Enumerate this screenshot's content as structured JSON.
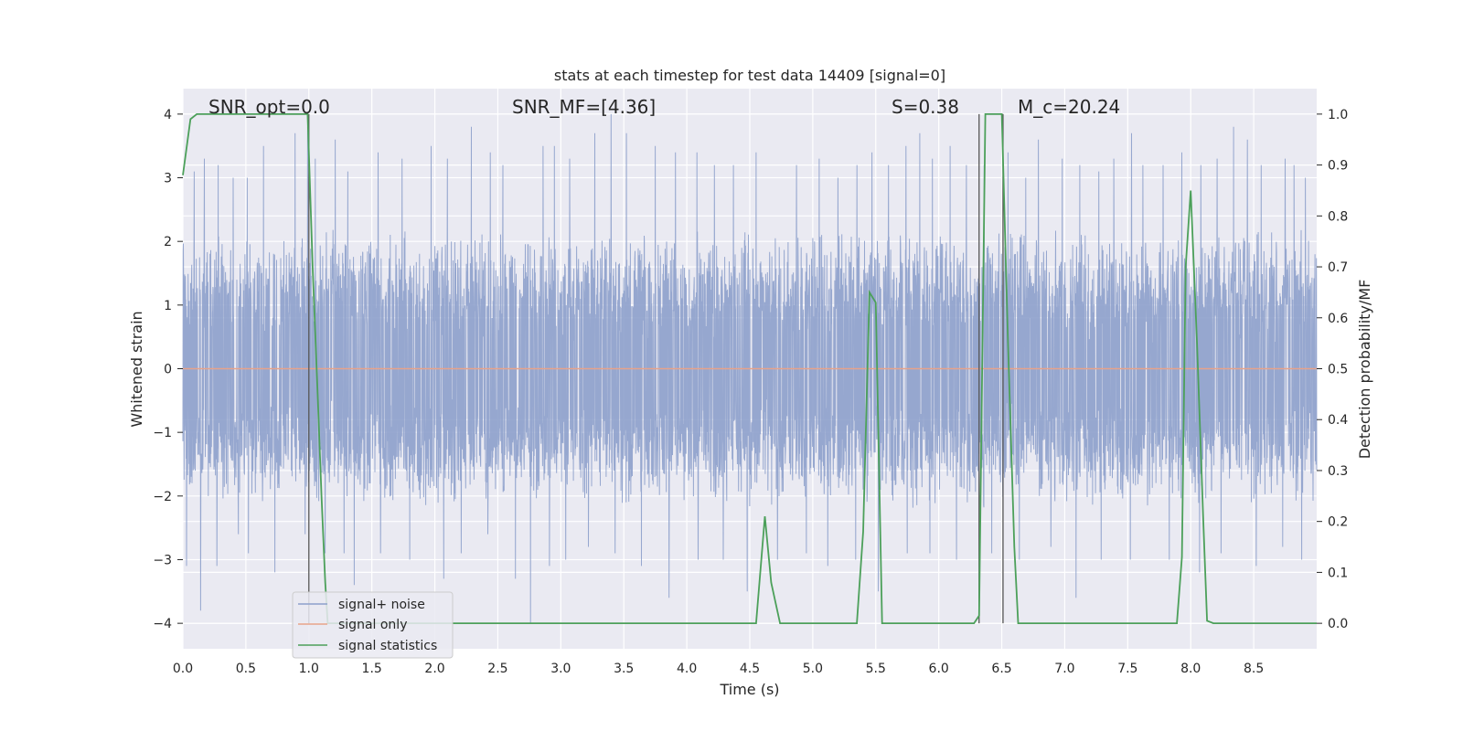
{
  "chart_data": {
    "type": "line",
    "title": "stats at each timestep for test data 14409 [signal=0]",
    "xlabel": "Time (s)",
    "ylabel": "Whitened strain",
    "y2label": "Detection probability/MF",
    "xlim": [
      0.0,
      9.0
    ],
    "ylim": [
      -4.4,
      4.4
    ],
    "y2lim": [
      -0.05,
      1.05
    ],
    "xticks": [
      "0.0",
      "0.5",
      "1.0",
      "1.5",
      "2.0",
      "2.5",
      "3.0",
      "3.5",
      "4.0",
      "4.5",
      "5.0",
      "5.5",
      "6.0",
      "6.5",
      "7.0",
      "7.5",
      "8.0",
      "8.5"
    ],
    "yticks": [
      "4",
      "3",
      "2",
      "1",
      "0",
      "−1",
      "−2",
      "−3",
      "−4"
    ],
    "y2ticks": [
      "1.0",
      "0.9",
      "0.8",
      "0.7",
      "0.6",
      "0.5",
      "0.4",
      "0.3",
      "0.2",
      "0.1",
      "0.0"
    ],
    "grid": true,
    "legend_position": "lower-left",
    "annotations": [
      {
        "id": "snr-opt",
        "text": "SNR_opt=0.0"
      },
      {
        "id": "snr-mf",
        "text": "SNR_MF=[4.36]"
      },
      {
        "id": "s",
        "text": "S=0.38"
      },
      {
        "id": "mc",
        "text": "M_c=20.24"
      }
    ],
    "vertical_lines_x": [
      1.0,
      6.32,
      6.51
    ],
    "noise": {
      "samples": 4600,
      "typical_peak": 2.2,
      "positive_spikes": [
        [
          0.09,
          3.1
        ],
        [
          0.17,
          3.3
        ],
        [
          0.28,
          3.2
        ],
        [
          0.4,
          3.0
        ],
        [
          0.51,
          3.0
        ],
        [
          0.64,
          3.5
        ],
        [
          0.73,
          3.3
        ],
        [
          0.89,
          3.7
        ],
        [
          0.99,
          3.8
        ],
        [
          1.05,
          3.3
        ],
        [
          1.21,
          3.6
        ],
        [
          1.31,
          3.1
        ],
        [
          1.55,
          3.4
        ],
        [
          1.74,
          3.3
        ],
        [
          1.97,
          3.5
        ],
        [
          2.1,
          3.3
        ],
        [
          2.29,
          3.8
        ],
        [
          2.44,
          3.4
        ],
        [
          2.54,
          3.2
        ],
        [
          2.64,
          3.8
        ],
        [
          2.86,
          3.5
        ],
        [
          2.95,
          3.5
        ],
        [
          3.07,
          3.3
        ],
        [
          3.27,
          3.7
        ],
        [
          3.4,
          4.0
        ],
        [
          3.52,
          3.7
        ],
        [
          3.64,
          3.3
        ],
        [
          3.75,
          3.5
        ],
        [
          3.91,
          3.4
        ],
        [
          4.08,
          3.4
        ],
        [
          4.22,
          3.2
        ],
        [
          4.37,
          3.2
        ],
        [
          4.55,
          3.4
        ],
        [
          4.72,
          3.2
        ],
        [
          4.87,
          3.2
        ],
        [
          5.05,
          3.3
        ],
        [
          5.2,
          3.0
        ],
        [
          5.35,
          3.2
        ],
        [
          5.47,
          3.4
        ],
        [
          5.6,
          3.2
        ],
        [
          5.74,
          3.5
        ],
        [
          5.85,
          3.7
        ],
        [
          5.95,
          3.3
        ],
        [
          6.09,
          3.5
        ],
        [
          6.22,
          3.2
        ],
        [
          6.36,
          3.2
        ],
        [
          6.55,
          3.4
        ],
        [
          6.69,
          3.0
        ],
        [
          6.79,
          3.6
        ],
        [
          6.98,
          3.3
        ],
        [
          7.12,
          3.2
        ],
        [
          7.27,
          3.1
        ],
        [
          7.39,
          3.3
        ],
        [
          7.53,
          3.7
        ],
        [
          7.62,
          3.2
        ],
        [
          7.78,
          3.2
        ],
        [
          7.93,
          3.4
        ],
        [
          8.08,
          3.2
        ],
        [
          8.21,
          3.3
        ],
        [
          8.34,
          3.8
        ],
        [
          8.45,
          3.6
        ],
        [
          8.56,
          3.2
        ],
        [
          8.75,
          3.3
        ],
        [
          8.82,
          3.2
        ],
        [
          8.91,
          3.0
        ]
      ],
      "negative_spikes": [
        [
          0.03,
          -3.1
        ],
        [
          0.14,
          -3.8
        ],
        [
          0.27,
          -3.1
        ],
        [
          0.44,
          -2.6
        ],
        [
          0.52,
          -2.9
        ],
        [
          0.73,
          -3.2
        ],
        [
          0.97,
          -2.6
        ],
        [
          1.13,
          -2.9
        ],
        [
          1.28,
          -2.9
        ],
        [
          1.36,
          -3.4
        ],
        [
          1.57,
          -2.9
        ],
        [
          1.8,
          -3.0
        ],
        [
          2.07,
          -3.3
        ],
        [
          2.21,
          -2.9
        ],
        [
          2.42,
          -2.6
        ],
        [
          2.64,
          -3.3
        ],
        [
          2.76,
          -4.0
        ],
        [
          2.91,
          -3.1
        ],
        [
          3.04,
          -3.0
        ],
        [
          3.22,
          -2.8
        ],
        [
          3.43,
          -2.9
        ],
        [
          3.64,
          -3.1
        ],
        [
          3.86,
          -3.6
        ],
        [
          4.09,
          -3.0
        ],
        [
          4.29,
          -3.0
        ],
        [
          4.48,
          -3.5
        ],
        [
          4.72,
          -3.0
        ],
        [
          4.95,
          -2.9
        ],
        [
          5.12,
          -3.1
        ],
        [
          5.34,
          -3.0
        ],
        [
          5.52,
          -3.5
        ],
        [
          5.75,
          -2.9
        ],
        [
          5.93,
          -2.9
        ],
        [
          6.14,
          -3.0
        ],
        [
          6.42,
          -2.9
        ],
        [
          6.64,
          -3.0
        ],
        [
          6.89,
          -2.8
        ],
        [
          7.09,
          -3.6
        ],
        [
          7.29,
          -3.0
        ],
        [
          7.52,
          -3.0
        ],
        [
          7.83,
          -3.0
        ],
        [
          8.07,
          -3.2
        ],
        [
          8.24,
          -2.9
        ],
        [
          8.52,
          -3.1
        ],
        [
          8.73,
          -2.8
        ],
        [
          8.88,
          -3.0
        ]
      ]
    },
    "series": [
      {
        "name": "signal+ noise",
        "color": "#8da0cb",
        "kind": "noise"
      },
      {
        "name": "signal only",
        "color": "#e8a38a",
        "kind": "flat",
        "y": 0
      },
      {
        "name": "signal statistics",
        "color": "#4ca05a",
        "kind": "line",
        "axis": "right",
        "points": [
          [
            0.0,
            0.88
          ],
          [
            0.06,
            0.99
          ],
          [
            0.11,
            1.0
          ],
          [
            0.5,
            1.0
          ],
          [
            0.99,
            1.0
          ],
          [
            1.03,
            0.7
          ],
          [
            1.07,
            0.45
          ],
          [
            1.1,
            0.25
          ],
          [
            1.13,
            0.08
          ],
          [
            1.15,
            0.0
          ],
          [
            4.55,
            0.0
          ],
          [
            4.62,
            0.21
          ],
          [
            4.67,
            0.08
          ],
          [
            4.74,
            0.0
          ],
          [
            5.35,
            0.0
          ],
          [
            5.4,
            0.18
          ],
          [
            5.45,
            0.65
          ],
          [
            5.5,
            0.63
          ],
          [
            5.55,
            0.0
          ],
          [
            6.28,
            0.0
          ],
          [
            6.32,
            0.015
          ],
          [
            6.37,
            1.0
          ],
          [
            6.5,
            1.0
          ],
          [
            6.55,
            0.55
          ],
          [
            6.6,
            0.15
          ],
          [
            6.63,
            0.0
          ],
          [
            7.89,
            0.0
          ],
          [
            7.93,
            0.13
          ],
          [
            7.96,
            0.7
          ],
          [
            8.0,
            0.85
          ],
          [
            8.05,
            0.55
          ],
          [
            8.1,
            0.2
          ],
          [
            8.13,
            0.005
          ],
          [
            8.18,
            0.0
          ],
          [
            9.0,
            0.0
          ]
        ]
      }
    ]
  }
}
